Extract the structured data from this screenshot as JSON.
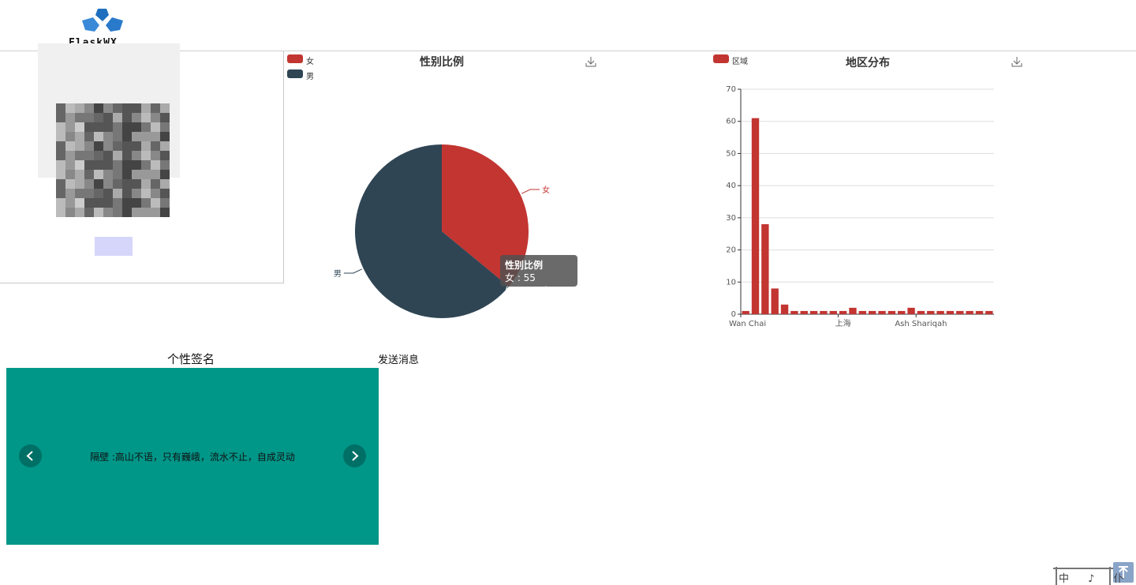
{
  "header": {
    "logo_text": "FlaskWX"
  },
  "gender_chart": {
    "title": "性别比例",
    "legend": [
      "女",
      "男"
    ],
    "tooltip_title": "性别比例",
    "tooltip_value": "女 : 55 (35.95%)"
  },
  "region_chart": {
    "title": "地区分布",
    "legend": [
      "区域"
    ]
  },
  "signature": {
    "title": "个性签名",
    "text": "隔壁 :高山不语，只有巍峨，流水不止，自成灵动"
  },
  "message": {
    "title": "发送消息"
  },
  "widget": {
    "text": "中 ♪ 仆"
  },
  "colors": {
    "accent_red": "#c23531",
    "dark_slate": "#2f4554",
    "teal": "#009688"
  },
  "chart_data": [
    {
      "type": "pie",
      "title": "性别比例",
      "labels": [
        "女",
        "男"
      ],
      "values": [
        55,
        98
      ],
      "colors": [
        "#c23531",
        "#2f4554"
      ]
    },
    {
      "type": "bar",
      "title": "地区分布",
      "series": [
        {
          "name": "区域",
          "values": [
            1,
            61,
            28,
            8,
            3,
            1,
            1,
            1,
            1,
            1,
            1,
            2,
            1,
            1,
            1,
            1,
            1,
            2,
            1,
            1,
            1,
            1,
            1,
            1,
            1,
            1
          ]
        }
      ],
      "categories": [
        "Wan Chai",
        "",
        "",
        "",
        "",
        "",
        "",
        "",
        "",
        "",
        "上海",
        "",
        "",
        "",
        "",
        "",
        "",
        "",
        "Ash Shariqah",
        "",
        "",
        "",
        "",
        "",
        "",
        ""
      ],
      "xtick_labels": [
        "Wan Chai",
        "上海",
        "Ash Shariqah"
      ],
      "ylim": [
        0,
        70
      ],
      "yticks": [
        0,
        10,
        20,
        30,
        40,
        50,
        60,
        70
      ],
      "grid": true
    }
  ]
}
